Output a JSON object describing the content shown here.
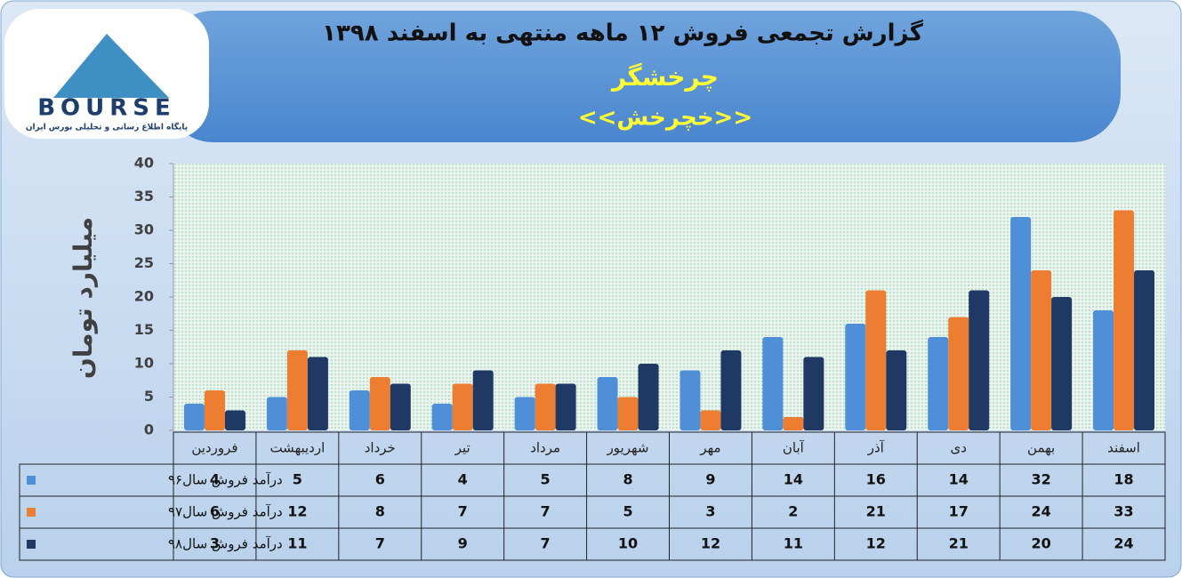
{
  "logo": {
    "text": "BOURSE",
    "tagline": "پایگاه اطلاع رسانی و تحلیلی بورس ایران"
  },
  "chart_data": {
    "type": "bar",
    "title": "گزارش تجمعی فروش  ۱۲ ماهه منتهی به اسفند ۱۳۹۸",
    "subtitle": "چرخشگر",
    "symbol": "<<خچرخش>>",
    "y_label": "میلیارد تومان",
    "categories": [
      "فروردین",
      "اردیبهشت",
      "خرداد",
      "تیر",
      "مرداد",
      "شهریور",
      "مهر",
      "آبان",
      "آذر",
      "دی",
      "بهمن",
      "اسفند"
    ],
    "series": [
      {
        "name": "درآمد فروش سال۹۶",
        "color": "#4f8fd8",
        "values": [
          4,
          5,
          6,
          4,
          5,
          8,
          9,
          14,
          16,
          14,
          32,
          18
        ]
      },
      {
        "name": "درآمد فروش سال۹۷",
        "color": "#ed7d31",
        "values": [
          6,
          12,
          8,
          7,
          7,
          5,
          3,
          2,
          21,
          17,
          24,
          33
        ]
      },
      {
        "name": "درآمد فروش سال۹۸",
        "color": "#1f3864",
        "values": [
          3,
          11,
          7,
          9,
          7,
          10,
          12,
          11,
          12,
          21,
          20,
          24
        ]
      }
    ],
    "ylim": [
      0,
      40
    ],
    "yticks": [
      0,
      5,
      10,
      15,
      20,
      25,
      30,
      35,
      40
    ],
    "grid": false
  }
}
